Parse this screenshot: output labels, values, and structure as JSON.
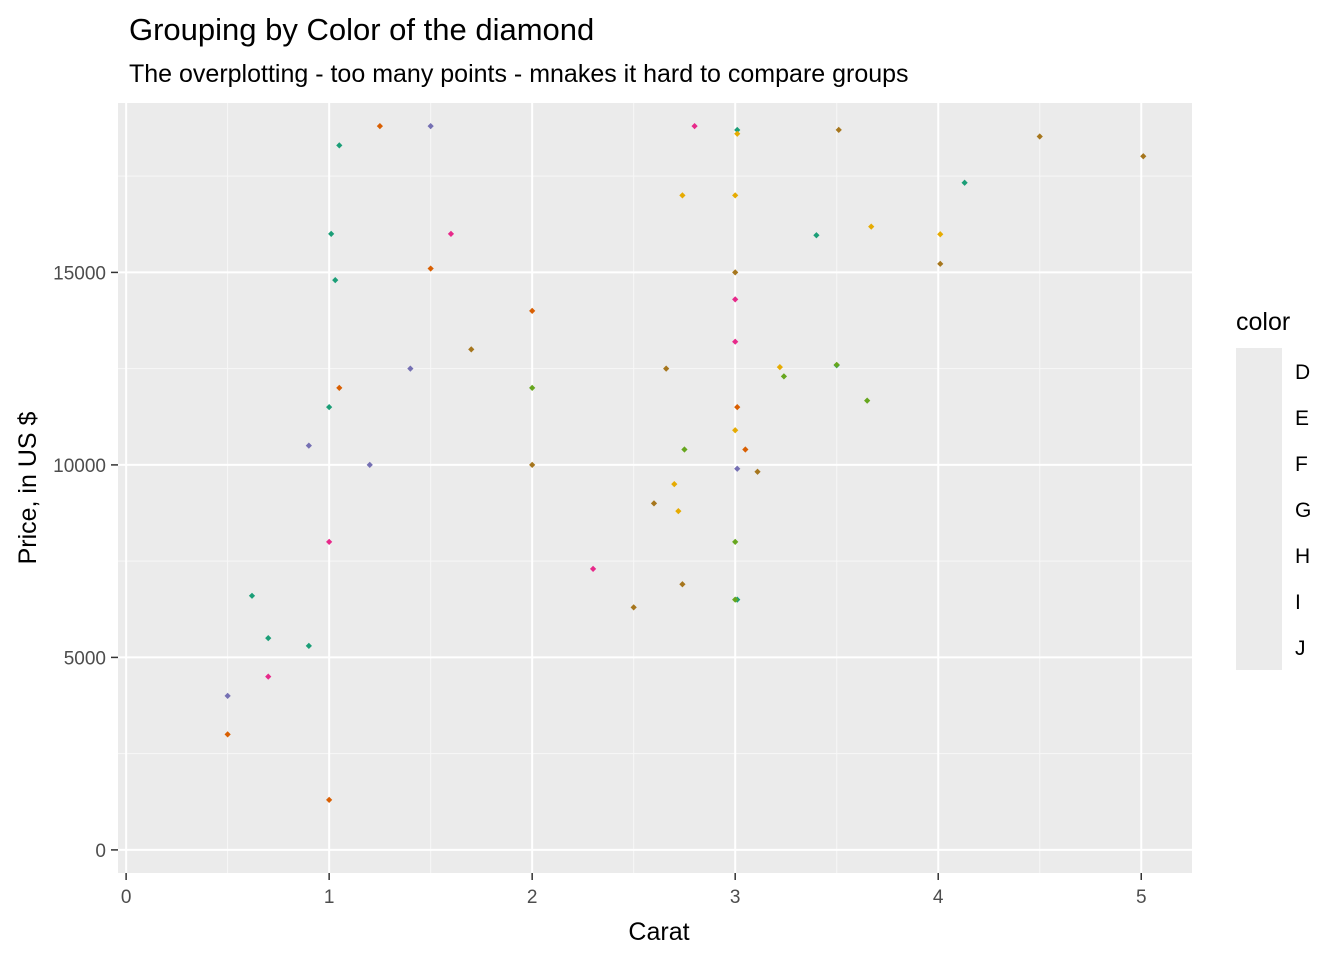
{
  "chart_data": {
    "type": "scatter",
    "title": "Grouping by Color of the diamond",
    "subtitle": "The overplotting - too many points - mnakes it hard to compare groups",
    "xlabel": "Carat",
    "ylabel": "Price, in US $",
    "xlim": [
      -0.04,
      5.25
    ],
    "ylim": [
      -600,
      19400
    ],
    "xticks": [
      0,
      1,
      2,
      3,
      4,
      5
    ],
    "yticks": [
      0,
      5000,
      10000,
      15000
    ],
    "grid": true,
    "legend_title": "color",
    "legend_position": "right",
    "series": [
      {
        "name": "D",
        "color": "#1B9E77",
        "points": [
          [
            3.4,
            15964
          ],
          [
            4.13,
            17329
          ],
          [
            3.5,
            12587
          ],
          [
            3.01,
            6500
          ],
          [
            3.01,
            18700
          ],
          [
            0.62,
            6600
          ],
          [
            1.05,
            18300
          ],
          [
            1.01,
            16000
          ],
          [
            1.03,
            14800
          ],
          [
            0.9,
            5300
          ],
          [
            1.0,
            11500
          ],
          [
            0.7,
            5500
          ]
        ]
      },
      {
        "name": "E",
        "color": "#D95F02",
        "points": [
          [
            3.05,
            10400
          ],
          [
            3.01,
            11500
          ],
          [
            1.25,
            18800
          ],
          [
            1.5,
            15100
          ],
          [
            1.05,
            12000
          ],
          [
            2.0,
            14000
          ],
          [
            0.5,
            3000
          ],
          [
            1.0,
            1300
          ]
        ]
      },
      {
        "name": "F",
        "color": "#7570B3",
        "points": [
          [
            3.01,
            9900
          ],
          [
            1.5,
            18800
          ],
          [
            1.2,
            10000
          ],
          [
            0.9,
            10500
          ],
          [
            0.5,
            4000
          ],
          [
            1.4,
            12500
          ]
        ]
      },
      {
        "name": "G",
        "color": "#E7298A",
        "points": [
          [
            3.0,
            13200
          ],
          [
            3.0,
            14300
          ],
          [
            2.8,
            18800
          ],
          [
            1.6,
            16000
          ],
          [
            1.0,
            8000
          ],
          [
            0.7,
            4500
          ],
          [
            2.3,
            7300
          ]
        ]
      },
      {
        "name": "H",
        "color": "#66A61E",
        "points": [
          [
            3.65,
            11670
          ],
          [
            3.24,
            12300
          ],
          [
            3.5,
            12600
          ],
          [
            3.0,
            8000
          ],
          [
            3.0,
            6500
          ],
          [
            2.75,
            10400
          ],
          [
            2.0,
            12000
          ]
        ]
      },
      {
        "name": "I",
        "color": "#E6AB02",
        "points": [
          [
            4.01,
            15990
          ],
          [
            3.67,
            16190
          ],
          [
            3.01,
            18600
          ],
          [
            3.22,
            12540
          ],
          [
            3.0,
            17000
          ],
          [
            2.74,
            17000
          ],
          [
            3.0,
            10900
          ],
          [
            2.7,
            9500
          ],
          [
            2.72,
            8800
          ]
        ]
      },
      {
        "name": "J",
        "color": "#A6761D",
        "points": [
          [
            5.01,
            18018
          ],
          [
            4.5,
            18531
          ],
          [
            4.01,
            15223
          ],
          [
            3.51,
            18701
          ],
          [
            3.11,
            9823
          ],
          [
            3.0,
            15000
          ],
          [
            2.74,
            6900
          ],
          [
            2.5,
            6300
          ],
          [
            2.6,
            9000
          ],
          [
            2.66,
            12500
          ],
          [
            2.0,
            10000
          ],
          [
            1.7,
            13000
          ]
        ]
      }
    ]
  }
}
